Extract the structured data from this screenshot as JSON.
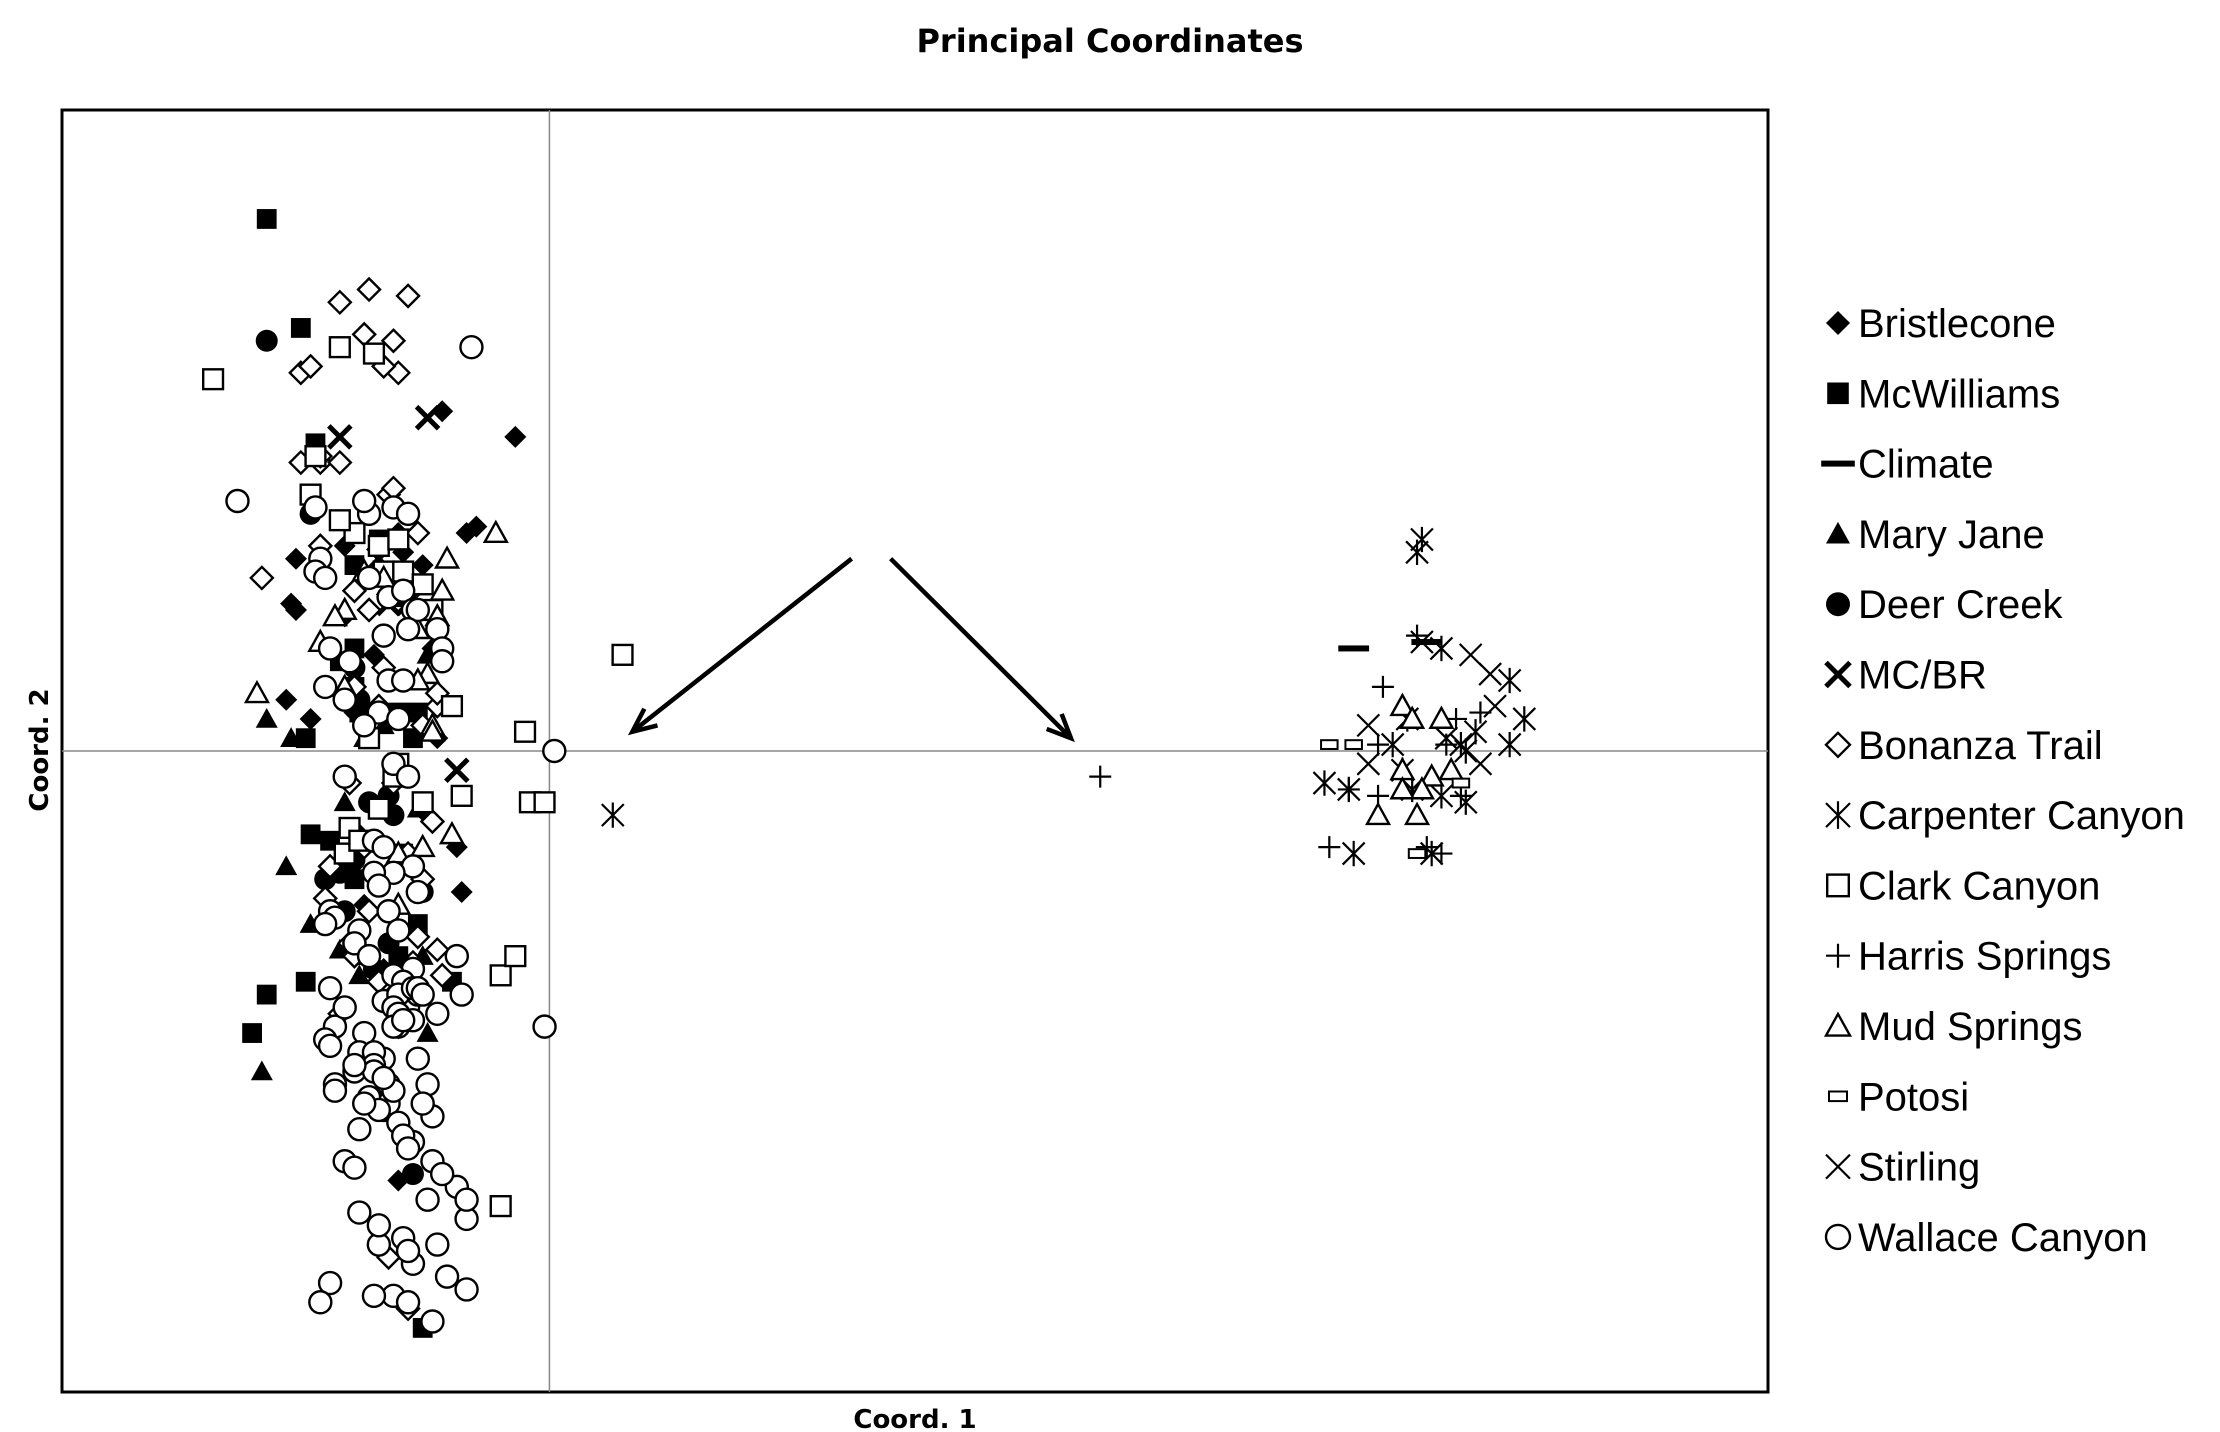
{
  "chart_data": {
    "type": "scatter",
    "title": "Principal Coordinates",
    "xlabel": "Coord. 1",
    "ylabel": "Coord. 2",
    "xlim": [
      -1.0,
      2.5
    ],
    "ylim": [
      -1.0,
      1.0
    ],
    "grid": false,
    "reference_lines": {
      "x": 0,
      "y": 0
    },
    "legend_position": "right",
    "series": [
      {
        "name": "Bristlecone",
        "marker": "diamond-filled",
        "x": [
          -0.22,
          -0.07,
          -0.17,
          -0.42,
          -0.31,
          -0.26,
          -0.3,
          -0.15,
          -0.52,
          -0.53,
          -0.42,
          -0.52,
          -0.36,
          -0.24,
          -0.54,
          -0.49,
          -0.23,
          -0.4,
          -0.25,
          -0.27,
          -0.19,
          -0.39,
          -0.38,
          -0.34,
          -0.18,
          -0.31
        ],
        "y": [
          0.53,
          0.49,
          0.34,
          0.32,
          0.34,
          0.29,
          0.31,
          0.35,
          0.3,
          0.23,
          0.21,
          0.22,
          0.15,
          0.16,
          0.08,
          0.05,
          0.02,
          0.06,
          -0.1,
          -0.22,
          -0.15,
          -0.13,
          -0.24,
          -0.34,
          -0.22,
          -0.67
        ]
      },
      {
        "name": "McWilliams",
        "marker": "square-filled",
        "x": [
          -0.58,
          -0.51,
          -0.48,
          -0.35,
          -0.4,
          -0.31,
          -0.4,
          -0.43,
          -0.4,
          -0.39,
          -0.31,
          -0.27,
          -0.28,
          -0.5,
          -0.49,
          -0.45,
          -0.42,
          -0.4,
          -0.3,
          -0.27,
          -0.31,
          -0.2,
          -0.61,
          -0.58,
          -0.5,
          -0.26
        ],
        "y": [
          0.83,
          0.66,
          0.48,
          0.33,
          0.29,
          0.24,
          0.16,
          0.14,
          0.1,
          0.06,
          0.06,
          0.06,
          0.02,
          0.02,
          -0.13,
          -0.14,
          -0.17,
          -0.2,
          -0.16,
          -0.27,
          -0.32,
          -0.36,
          -0.44,
          -0.38,
          -0.36,
          -0.9
        ]
      },
      {
        "name": "Climate",
        "marker": "dash",
        "x": [
          1.65,
          1.8
        ],
        "y": [
          0.16,
          0.17
        ]
      },
      {
        "name": "Mary Jane",
        "marker": "triangle-filled",
        "x": [
          -0.58,
          -0.53,
          -0.54,
          -0.49,
          -0.43,
          -0.39,
          -0.36,
          -0.37,
          -0.26,
          -0.25,
          -0.42,
          -0.38,
          -0.34,
          -0.27,
          -0.59,
          -0.25
        ],
        "y": [
          0.05,
          0.02,
          -0.18,
          -0.27,
          -0.31,
          -0.35,
          -0.33,
          -0.32,
          -0.32,
          0.15,
          -0.08,
          0.02,
          0.04,
          -0.09,
          -0.5,
          -0.44
        ]
      },
      {
        "name": "Deer Creek",
        "marker": "circle-filled",
        "x": [
          -0.58,
          -0.49,
          -0.4,
          -0.39,
          -0.37,
          -0.32,
          -0.4,
          -0.43,
          -0.46,
          -0.33,
          -0.36,
          -0.42,
          -0.26,
          -0.33,
          -0.28
        ],
        "y": [
          0.64,
          0.37,
          0.13,
          0.08,
          -0.08,
          -0.1,
          -0.17,
          -0.19,
          -0.2,
          -0.07,
          -0.34,
          -0.25,
          -0.22,
          -0.3,
          -0.66
        ]
      },
      {
        "name": "MC/BR",
        "marker": "x-bold",
        "x": [
          -0.43,
          -0.25,
          -0.35,
          -0.19,
          -0.29,
          -0.33
        ],
        "y": [
          0.49,
          0.52,
          0.3,
          -0.03,
          0.23,
          0.23
        ]
      },
      {
        "name": "Bonanza Trail",
        "marker": "diamond-open",
        "x": [
          -0.29,
          -0.43,
          -0.37,
          -0.32,
          -0.38,
          -0.31,
          -0.34,
          -0.51,
          -0.49,
          -0.47,
          -0.47,
          -0.43,
          -0.51,
          -0.59,
          -0.47,
          -0.33,
          -0.32,
          -0.27,
          -0.4,
          -0.37,
          -0.4,
          -0.23,
          -0.34,
          -0.23,
          -0.35,
          -0.26,
          -0.32,
          -0.41,
          -0.38,
          -0.29,
          -0.24,
          -0.45,
          -0.37,
          -0.26,
          -0.27,
          -0.23,
          -0.28,
          -0.41,
          -0.4,
          -0.35,
          -0.32,
          -0.43,
          -0.31,
          -0.46,
          -0.33,
          -0.22,
          -0.29
        ],
        "y": [
          0.71,
          0.7,
          0.72,
          0.64,
          0.65,
          0.59,
          0.6,
          0.59,
          0.6,
          0.45,
          0.46,
          0.45,
          0.45,
          0.27,
          0.32,
          0.4,
          0.41,
          0.34,
          0.25,
          0.22,
          0.1,
          0.07,
          0.13,
          0.09,
          0.07,
          0.04,
          -0.05,
          -0.05,
          -0.15,
          -0.16,
          -0.11,
          -0.18,
          -0.25,
          -0.2,
          -0.29,
          -0.31,
          -0.33,
          -0.3,
          -0.32,
          -0.36,
          -0.38,
          -0.41,
          -0.43,
          -0.23,
          -0.79,
          -0.35,
          -0.87
        ]
      },
      {
        "name": "Carpenter Canyon",
        "marker": "asterisk",
        "x": [
          0.13,
          1.79,
          1.78,
          1.83,
          1.76,
          1.97,
          1.87,
          1.73,
          1.64,
          1.59,
          1.77,
          1.83,
          1.97,
          1.65,
          1.81,
          1.9,
          1.88,
          2.0,
          1.75,
          1.88
        ],
        "y": [
          -0.1,
          0.33,
          0.31,
          0.16,
          0.05,
          0.11,
          0.01,
          0.01,
          -0.06,
          -0.05,
          -0.06,
          -0.07,
          0.01,
          -0.16,
          -0.16,
          0.03,
          0.0,
          0.05,
          -0.03,
          -0.08
        ]
      },
      {
        "name": "Clark Canyon",
        "marker": "square-open",
        "x": [
          -0.69,
          -0.48,
          -0.35,
          -0.4,
          -0.34,
          -0.31,
          -0.3,
          -0.26,
          -0.24,
          -0.04,
          -0.01,
          0.15,
          -0.42,
          -0.41,
          -0.39,
          -0.35,
          -0.1,
          -0.07,
          -0.26,
          -0.32,
          -0.31,
          -0.43,
          -0.36,
          -0.2,
          -0.49,
          -0.43,
          -0.37,
          -0.18,
          -0.05,
          -0.1
        ],
        "y": [
          0.58,
          0.46,
          0.32,
          0.34,
          0.28,
          0.33,
          0.28,
          0.26,
          0.22,
          -0.08,
          -0.08,
          0.15,
          -0.16,
          -0.12,
          -0.14,
          -0.09,
          -0.35,
          -0.32,
          -0.08,
          -0.04,
          -0.02,
          0.63,
          0.62,
          0.07,
          0.4,
          0.36,
          0.02,
          -0.07,
          0.03,
          -0.71
        ]
      },
      {
        "name": "Harris Springs",
        "marker": "plus",
        "x": [
          1.13,
          1.78,
          1.71,
          1.91,
          1.64,
          1.7,
          1.6,
          1.83,
          1.8,
          1.84,
          1.87,
          1.86,
          1.7
        ],
        "y": [
          -0.04,
          0.18,
          0.1,
          0.06,
          -0.06,
          -0.07,
          -0.15,
          -0.16,
          -0.15,
          0.01,
          -0.07,
          0.05,
          0.01
        ]
      },
      {
        "name": "Mud Springs",
        "marker": "triangle-open",
        "x": [
          -0.11,
          -0.6,
          -0.34,
          -0.42,
          -0.22,
          -0.23,
          -0.27,
          -0.25,
          -0.27,
          -0.24,
          -0.24,
          -0.31,
          -0.31,
          -0.2,
          -0.26,
          -0.44,
          -0.38,
          -0.21,
          -0.42,
          -0.47,
          1.81,
          1.75,
          1.77,
          1.83,
          1.75,
          1.7,
          1.79,
          1.75,
          1.78,
          1.85
        ],
        "y": [
          0.34,
          0.09,
          0.27,
          0.22,
          0.25,
          0.21,
          0.19,
          0.12,
          0.11,
          0.04,
          0.03,
          -0.16,
          -0.24,
          -0.13,
          -0.15,
          0.21,
          0.28,
          0.3,
          0.1,
          0.17,
          -0.04,
          0.07,
          0.05,
          0.05,
          -0.03,
          -0.1,
          -0.06,
          -0.06,
          -0.1,
          -0.03
        ]
      },
      {
        "name": "Potosi",
        "marker": "small-rect",
        "x": [
          1.6,
          1.78,
          1.65,
          1.87
        ],
        "y": [
          0.01,
          -0.16,
          0.01,
          -0.05
        ]
      },
      {
        "name": "Stirling",
        "marker": "x-thin",
        "x": [
          1.89,
          1.93,
          1.79,
          1.84,
          1.91,
          1.68,
          1.68,
          1.94
        ],
        "y": [
          0.15,
          0.12,
          0.17,
          0.02,
          -0.02,
          0.04,
          -0.02,
          0.07
        ]
      },
      {
        "name": "Wallace Canyon",
        "marker": "circle-open",
        "x": [
          -0.16,
          -0.64,
          -0.37,
          -0.38,
          -0.32,
          -0.29,
          -0.48,
          -0.47,
          -0.48,
          -0.46,
          -0.37,
          -0.33,
          -0.3,
          -0.28,
          -0.27,
          -0.23,
          -0.22,
          -0.22,
          -0.29,
          -0.34,
          -0.45,
          -0.41,
          -0.33,
          -0.35,
          -0.31,
          -0.38,
          -0.46,
          -0.42,
          -0.3,
          -0.32,
          -0.29,
          -0.42,
          -0.36,
          -0.34,
          -0.28,
          -0.32,
          -0.27,
          -0.36,
          -0.35,
          -0.45,
          -0.44,
          -0.46,
          -0.33,
          -0.4,
          -0.39,
          -0.31,
          -0.19,
          -0.18,
          -0.29,
          -0.29,
          -0.31,
          -0.44,
          -0.38,
          -0.45,
          -0.4,
          -0.37,
          -0.28,
          -0.32,
          -0.31,
          -0.27,
          -0.34,
          -0.3,
          -0.31,
          -0.32,
          -0.28,
          -0.27,
          -0.31,
          -0.28,
          -0.32,
          -0.23,
          -0.26,
          -0.34,
          -0.39,
          -0.33,
          -0.28,
          -0.24,
          -0.31,
          -0.3,
          -0.29,
          -0.42,
          -0.34,
          -0.4,
          -0.44,
          -0.37,
          -0.46,
          -0.27,
          -0.25,
          -0.39,
          -0.45,
          -0.3,
          -0.42,
          -0.36,
          -0.36,
          -0.36,
          -0.33,
          -0.32,
          -0.26,
          -0.35,
          -0.34,
          -0.4,
          -0.44,
          -0.38,
          0.01,
          -0.01,
          -0.17,
          -0.23,
          -0.17,
          -0.45,
          -0.47,
          -0.35,
          -0.35,
          -0.3,
          -0.32,
          -0.29,
          -0.24,
          -0.19,
          -0.25,
          -0.39,
          -0.4,
          -0.28,
          -0.29,
          -0.22,
          -0.17,
          -0.21,
          -0.24,
          -0.36
        ],
        "y": [
          0.63,
          0.39,
          0.37,
          0.39,
          0.38,
          0.37,
          0.38,
          0.3,
          0.28,
          0.27,
          0.27,
          0.24,
          0.25,
          0.22,
          0.22,
          0.19,
          0.16,
          0.14,
          0.19,
          0.18,
          0.16,
          0.14,
          0.11,
          0.06,
          0.05,
          0.04,
          0.1,
          0.08,
          0.11,
          -0.02,
          -0.04,
          -0.04,
          -0.14,
          -0.15,
          -0.18,
          -0.19,
          -0.22,
          -0.19,
          -0.21,
          -0.25,
          -0.26,
          -0.27,
          -0.25,
          -0.3,
          -0.28,
          -0.28,
          -0.32,
          -0.38,
          -0.38,
          -0.4,
          -0.43,
          -0.43,
          -0.44,
          -0.37,
          -0.3,
          -0.32,
          -0.34,
          -0.35,
          -0.41,
          -0.38,
          -0.39,
          -0.36,
          -0.38,
          -0.4,
          -0.37,
          -0.37,
          -0.41,
          -0.42,
          -0.43,
          -0.41,
          -0.38,
          -0.56,
          -0.59,
          -0.55,
          -0.61,
          -0.57,
          -0.58,
          -0.6,
          -0.62,
          -0.64,
          -0.48,
          -0.5,
          -0.52,
          -0.54,
          -0.45,
          -0.48,
          -0.52,
          -0.47,
          -0.46,
          -0.42,
          -0.4,
          -0.47,
          -0.49,
          -0.5,
          -0.52,
          -0.53,
          -0.55,
          -0.56,
          -0.51,
          -0.49,
          -0.53,
          -0.55,
          0.0,
          -0.43,
          -0.73,
          -0.77,
          -0.84,
          -0.83,
          -0.86,
          -0.77,
          -0.74,
          -0.76,
          -0.85,
          -0.86,
          -0.64,
          -0.68,
          -0.7,
          -0.72,
          -0.65,
          -0.8,
          -0.78,
          -0.66,
          -0.7,
          -0.82,
          -0.89,
          -0.85
        ]
      }
    ],
    "annotations": [
      {
        "type": "arrow",
        "from": [
          0.62,
          0.3
        ],
        "to": [
          0.17,
          0.03
        ]
      },
      {
        "type": "arrow",
        "from": [
          0.7,
          0.3
        ],
        "to": [
          1.07,
          0.02
        ]
      }
    ]
  }
}
